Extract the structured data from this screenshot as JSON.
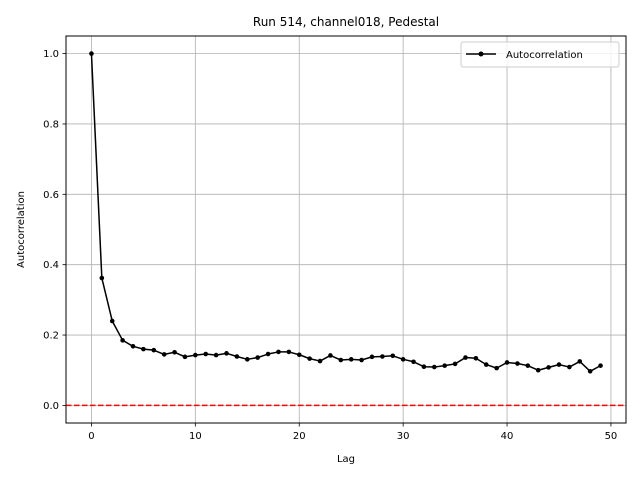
{
  "chart_data": {
    "type": "line",
    "title": "Run 514, channel018, Pedestal",
    "xlabel": "Lag",
    "ylabel": "Autocorrelation",
    "xlim": [
      -2.45,
      51.45
    ],
    "ylim": [
      -0.05,
      1.05
    ],
    "xticks": [
      0,
      10,
      20,
      30,
      40,
      50
    ],
    "yticks": [
      0.0,
      0.2,
      0.4,
      0.6,
      0.8,
      1.0
    ],
    "xtick_labels": [
      "0",
      "10",
      "20",
      "30",
      "40",
      "50"
    ],
    "ytick_labels": [
      "0.0",
      "0.2",
      "0.4",
      "0.6",
      "0.8",
      "1.0"
    ],
    "grid": true,
    "legend_position": "top-right",
    "series": [
      {
        "name": "Autocorrelation",
        "color": "#000000",
        "marker": "circle",
        "x": [
          0,
          1,
          2,
          3,
          4,
          5,
          6,
          7,
          8,
          9,
          10,
          11,
          12,
          13,
          14,
          15,
          16,
          17,
          18,
          19,
          20,
          21,
          22,
          23,
          24,
          25,
          26,
          27,
          28,
          29,
          30,
          31,
          32,
          33,
          34,
          35,
          36,
          37,
          38,
          39,
          40,
          41,
          42,
          43,
          44,
          45,
          46,
          47,
          48,
          49
        ],
        "y": [
          1.0,
          0.362,
          0.24,
          0.185,
          0.168,
          0.16,
          0.157,
          0.145,
          0.151,
          0.138,
          0.143,
          0.146,
          0.143,
          0.148,
          0.139,
          0.131,
          0.136,
          0.146,
          0.152,
          0.152,
          0.144,
          0.133,
          0.126,
          0.142,
          0.129,
          0.131,
          0.129,
          0.138,
          0.139,
          0.141,
          0.131,
          0.124,
          0.11,
          0.109,
          0.113,
          0.118,
          0.136,
          0.134,
          0.116,
          0.106,
          0.122,
          0.119,
          0.113,
          0.1,
          0.108,
          0.116,
          0.109,
          0.125,
          0.097,
          0.113
        ]
      }
    ],
    "reference_line": {
      "y": 0.0,
      "color": "#ff0000",
      "style": "dashed"
    }
  }
}
